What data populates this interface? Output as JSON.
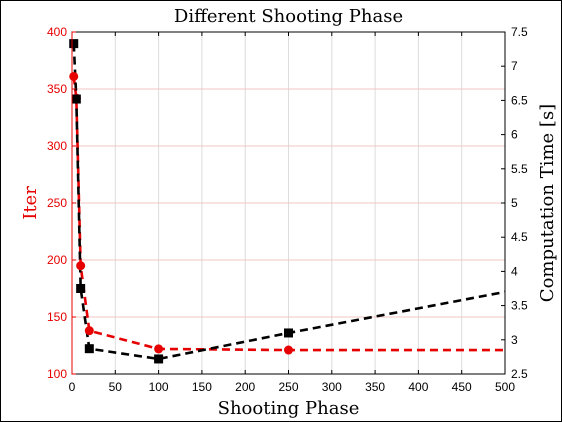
{
  "chart_data": {
    "type": "line",
    "title": "Different Shooting Phase",
    "xlabel": "Shooting Phase",
    "ylabel_left": "Iter",
    "ylabel_right": "Computation Time [s]",
    "xlim": [
      0,
      500
    ],
    "ylim_left": [
      100,
      400
    ],
    "ylim_right": [
      2.5,
      7.5
    ],
    "xticks": [
      0,
      50,
      100,
      150,
      200,
      250,
      300,
      350,
      400,
      450,
      500
    ],
    "yticks_left": [
      100,
      150,
      200,
      250,
      300,
      350,
      400
    ],
    "yticks_right": [
      2.5,
      3,
      3.5,
      4,
      4.5,
      5,
      5.5,
      6,
      6.5,
      7,
      7.5
    ],
    "grid": true,
    "series": [
      {
        "axis": "left",
        "color": "#e60000",
        "marker": "circle",
        "linestyle": "dashed",
        "x": [
          2,
          5,
          10,
          20,
          100,
          250
        ],
        "y": [
          361,
          342,
          195,
          138,
          122,
          121
        ],
        "line_end": {
          "x": 500,
          "y": 121
        }
      },
      {
        "axis": "right",
        "color": "#000000",
        "marker": "square",
        "linestyle": "dashed",
        "x": [
          2,
          5,
          10,
          20,
          100,
          250
        ],
        "y": [
          7.33,
          6.52,
          3.75,
          2.87,
          2.72,
          3.1
        ],
        "line_end": {
          "x": 500,
          "y": 3.7
        }
      }
    ],
    "left_axis_color": "#e60000",
    "right_axis_color": "#000000"
  }
}
